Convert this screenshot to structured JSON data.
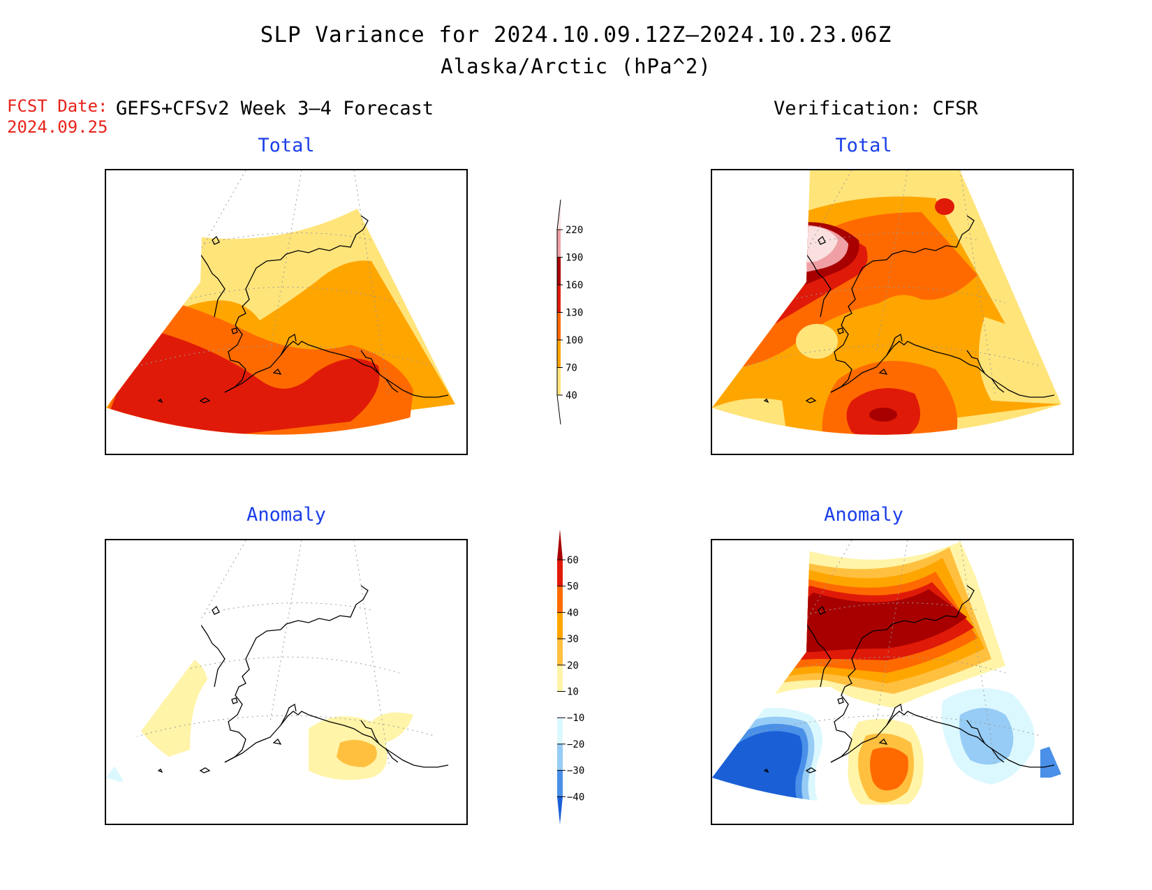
{
  "title": {
    "line1": "SLP Variance for 2024.10.09.12Z—2024.10.23.06Z",
    "line2": "Alaska/Arctic (hPa^2)"
  },
  "fcst_date": {
    "label": "FCST Date:",
    "value": "2024.09.25"
  },
  "left_header": "GEFS+CFSv2 Week 3–4 Forecast",
  "right_header": "Verification: CFSR",
  "panels": {
    "tl": {
      "subtitle": "Total"
    },
    "tr": {
      "subtitle": "Total"
    },
    "bl": {
      "subtitle": "Anomaly"
    },
    "br": {
      "subtitle": "Anomaly"
    }
  },
  "colorbar_total": {
    "levels": [
      "220",
      "190",
      "160",
      "130",
      "100",
      "70",
      "40"
    ],
    "colors": [
      "#fbe0e0",
      "#f0a0a5",
      "#a80000",
      "#e01a08",
      "#ff6a00",
      "#ffa500",
      "#ffe47a"
    ]
  },
  "colorbar_anomaly": {
    "levels": [
      "60",
      "50",
      "40",
      "30",
      "20",
      "10",
      "−10",
      "−20",
      "−30",
      "−40"
    ],
    "colors": [
      "#a80000",
      "#e01a08",
      "#ff6a00",
      "#ffa500",
      "#ffc040",
      "#fff4a8",
      "#ffffff",
      "#dcf8ff",
      "#96ccf5",
      "#4a90e8",
      "#1a5fd6"
    ]
  },
  "colors": {
    "fcst_date": "#e8221a",
    "subtitle": "#1a3ee8"
  }
}
